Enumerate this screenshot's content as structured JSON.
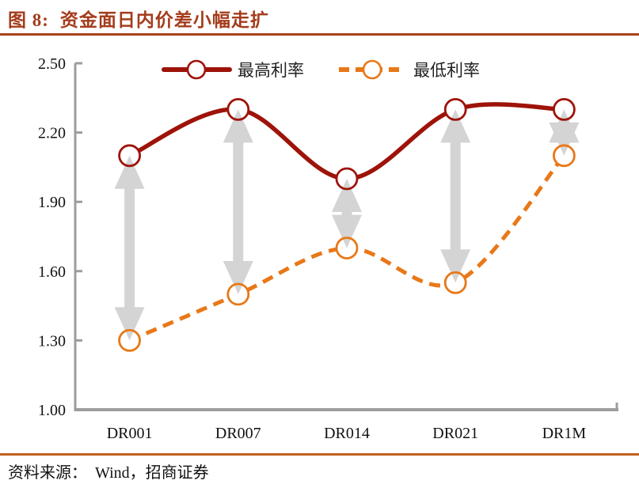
{
  "header": {
    "title_prefix": "图 8:",
    "title": "资金面日内价差小幅走扩"
  },
  "footer": {
    "source_label": "资料来源：",
    "source_text": "Wind，招商证券"
  },
  "chart_data": {
    "type": "line",
    "categories": [
      "DR001",
      "DR007",
      "DR014",
      "DR021",
      "DR1M"
    ],
    "series": [
      {
        "name": "最高利率",
        "style": "solid",
        "color": "#9E1309",
        "marker": "open-circle",
        "values": [
          2.1,
          2.3,
          2.0,
          2.3,
          2.3
        ]
      },
      {
        "name": "最低利率",
        "style": "dashed",
        "color": "#E87818",
        "marker": "open-circle",
        "values": [
          1.3,
          1.5,
          1.7,
          1.55,
          2.1
        ]
      }
    ],
    "y_ticks": [
      2.5,
      2.2,
      1.9,
      1.6,
      1.3,
      1.0
    ],
    "y_tick_format": "0.00",
    "ylim": [
      1.0,
      2.5
    ],
    "xlabel": "",
    "ylabel": "",
    "grid": false,
    "legend_position": "top-center",
    "annotations": "gray double-headed vertical arrows mark the high-low spread at each tenor",
    "colors": {
      "spread_arrow": "#D4D4D4",
      "axis": "#9D9D9D",
      "tick_label": "#111111",
      "title_accent": "#A8441C",
      "footer_accent": "#C2601F"
    }
  }
}
